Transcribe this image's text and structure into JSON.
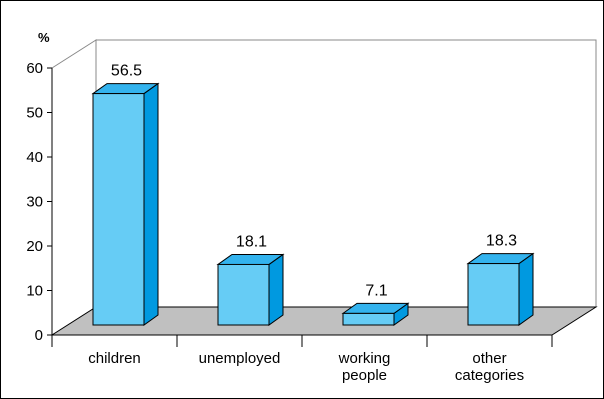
{
  "chart_data": {
    "type": "bar",
    "title": "",
    "ylabel": "%",
    "xlabel": "",
    "categories": [
      [
        "children"
      ],
      [
        "unemployed"
      ],
      [
        "working",
        "people"
      ],
      [
        "other",
        "categories"
      ]
    ],
    "values": [
      56.5,
      18.1,
      7.1,
      18.3
    ],
    "value_labels": [
      "56.5",
      "18.1",
      "7.1",
      "18.3"
    ],
    "ylim": [
      0,
      60
    ],
    "yticks": [
      "0",
      "10",
      "20",
      "30",
      "40",
      "50",
      "60"
    ],
    "grid": false,
    "style": "3d",
    "colors": {
      "bar_front": "#66ccf5",
      "bar_side": "#0099e0",
      "bar_top": "#33b3ee",
      "floor": "#c0c0c0",
      "outline": "#000000"
    }
  }
}
